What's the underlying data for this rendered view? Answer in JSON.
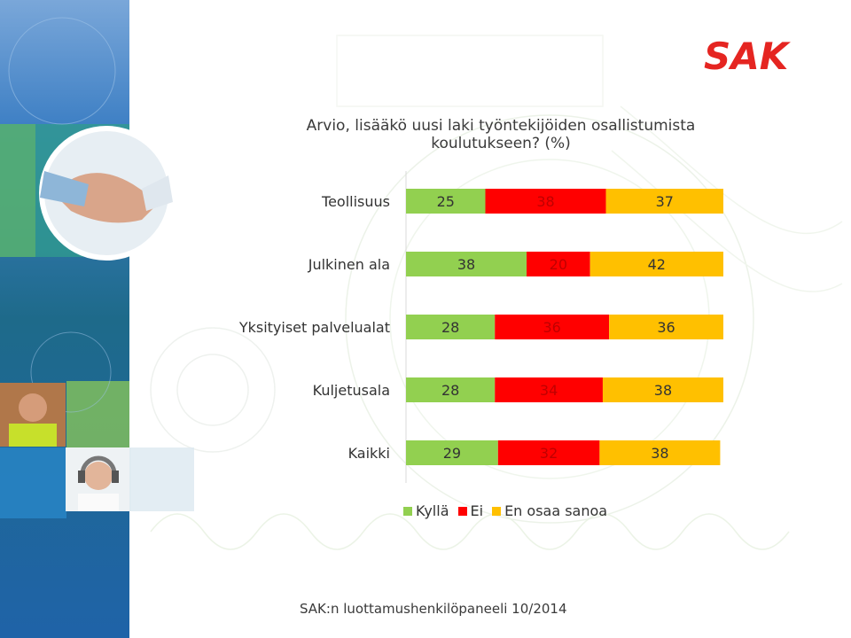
{
  "chart_data": {
    "type": "bar",
    "orientation": "horizontal",
    "stacked": true,
    "title": "Arvio, lisääkö uusi laki työntekijöiden osallistumista koulutukseen? (%)",
    "categories": [
      "Teollisuus",
      "Julkinen ala",
      "Yksityiset palvelualat",
      "Kuljetusala",
      "Kaikki"
    ],
    "series": [
      {
        "name": "Kyllä",
        "color": "#92d050",
        "values": [
          25,
          38,
          28,
          28,
          29
        ]
      },
      {
        "name": "Ei",
        "color": "#ff0000",
        "values": [
          38,
          20,
          36,
          34,
          32
        ]
      },
      {
        "name": "En osaa sanoa",
        "color": "#ffc000",
        "values": [
          37,
          42,
          36,
          38,
          38
        ]
      }
    ],
    "xlim": [
      0,
      100
    ],
    "grid": false,
    "legend": "bottom"
  },
  "footer": {
    "source": "SAK:n luottamushenkilöpaneeli 10/2014"
  },
  "brand": {
    "logo_text": "SAK",
    "logo_color": "#e52521"
  }
}
